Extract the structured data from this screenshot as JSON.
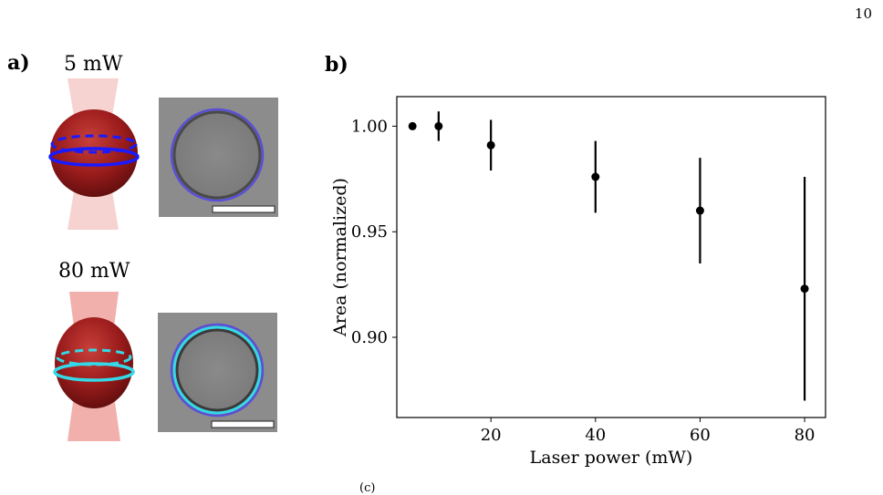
{
  "page_number": "10",
  "caption_fragment": "(c)",
  "panel_a": {
    "label": "a)",
    "conditions": [
      {
        "power_label": "5 mW"
      },
      {
        "power_label": "80 mW"
      }
    ]
  },
  "panel_b": {
    "label": "b)"
  },
  "colors": {
    "droplet": "#9b1c1c",
    "beam": "#f4c8c5",
    "ring_5mW": "#1a1aff",
    "ring_80mW": "#35d8e6",
    "fit_ring": "#5a4fd8"
  },
  "chart_data": {
    "type": "scatter",
    "xlabel": "Laser power (mW)",
    "ylabel": "Area (normalized)",
    "xlim": [
      2,
      84
    ],
    "ylim": [
      0.862,
      1.014
    ],
    "xticks": [
      20,
      40,
      60,
      80
    ],
    "yticks": [
      0.9,
      0.95,
      1.0
    ],
    "ytick_labels": [
      "0.90",
      "0.95",
      "1.00"
    ],
    "grid": false,
    "x": [
      5,
      10,
      20,
      40,
      60,
      80
    ],
    "y": [
      1.0,
      1.0,
      0.991,
      0.976,
      0.96,
      0.923
    ],
    "yerr": [
      0,
      0.007,
      0.012,
      0.017,
      0.025,
      0.053
    ],
    "marker_color": "#000000"
  }
}
